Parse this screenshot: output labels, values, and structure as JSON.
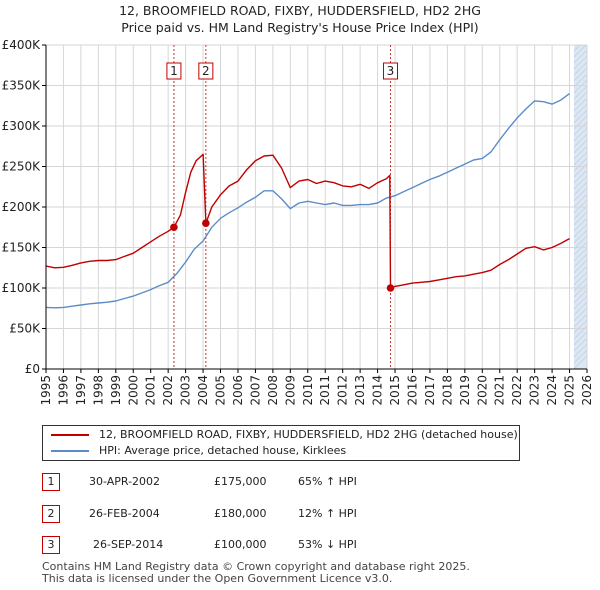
{
  "title_line1": "12, BROOMFIELD ROAD, FIXBY, HUDDERSFIELD, HD2 2HG",
  "title_line2": "Price paid vs. HM Land Registry's House Price Index (HPI)",
  "colors": {
    "price_line": "#c00000",
    "hpi_line": "#5b8cc8",
    "shade": "#dde6f3",
    "grid": "#d6d6d6",
    "axis": "#000000"
  },
  "chart_data": {
    "type": "line",
    "xlim": [
      1995,
      2026
    ],
    "ylim": [
      0,
      400000
    ],
    "grid": true,
    "x_ticks": [
      "1995",
      "1996",
      "1997",
      "1998",
      "1999",
      "2000",
      "2001",
      "2002",
      "2003",
      "2004",
      "2005",
      "2006",
      "2007",
      "2008",
      "2009",
      "2010",
      "2011",
      "2012",
      "2013",
      "2014",
      "2015",
      "2016",
      "2017",
      "2018",
      "2019",
      "2020",
      "2021",
      "2022",
      "2023",
      "2024",
      "2025",
      "2026"
    ],
    "y_ticks": [
      {
        "value": 0,
        "label": "£0"
      },
      {
        "value": 50000,
        "label": "£50K"
      },
      {
        "value": 100000,
        "label": "£100K"
      },
      {
        "value": 150000,
        "label": "£150K"
      },
      {
        "value": 200000,
        "label": "£200K"
      },
      {
        "value": 250000,
        "label": "£250K"
      },
      {
        "value": 300000,
        "label": "£300K"
      },
      {
        "value": 350000,
        "label": "£350K"
      },
      {
        "value": 400000,
        "label": "£400K"
      }
    ],
    "future_shade_from": 2025.25,
    "series": [
      {
        "name": "12, BROOMFIELD ROAD, FIXBY, HUDDERSFIELD, HD2 2HG (detached house)",
        "color": "#c00000",
        "x": [
          1995.0,
          1995.5,
          1996.0,
          1996.5,
          1997.0,
          1997.5,
          1998.0,
          1998.5,
          1999.0,
          1999.5,
          2000.0,
          2000.5,
          2001.0,
          2001.5,
          2002.0,
          2002.33,
          2002.7,
          2003.0,
          2003.3,
          2003.6,
          2003.9,
          2004.0,
          2004.16,
          2004.5,
          2005.0,
          2005.5,
          2006.0,
          2006.5,
          2007.0,
          2007.5,
          2008.0,
          2008.5,
          2009.0,
          2009.5,
          2010.0,
          2010.5,
          2011.0,
          2011.5,
          2012.0,
          2012.5,
          2013.0,
          2013.5,
          2014.0,
          2014.5,
          2014.7,
          2014.74,
          2015.0,
          2015.5,
          2016.0,
          2016.5,
          2017.0,
          2017.5,
          2018.0,
          2018.5,
          2019.0,
          2019.5,
          2020.0,
          2020.5,
          2021.0,
          2021.5,
          2022.0,
          2022.5,
          2023.0,
          2023.5,
          2024.0,
          2024.5,
          2025.0
        ],
        "y": [
          127000,
          125000,
          125500,
          128000,
          131000,
          133000,
          134000,
          134000,
          135000,
          139000,
          143000,
          150000,
          157000,
          164000,
          170000,
          175000,
          190000,
          218000,
          243000,
          257000,
          263000,
          265000,
          180000,
          200000,
          215000,
          226000,
          232000,
          246000,
          257000,
          263000,
          264000,
          248000,
          224000,
          232000,
          234000,
          229000,
          232000,
          230000,
          226000,
          225000,
          228000,
          223000,
          230000,
          235000,
          239000,
          100000,
          102000,
          104000,
          106000,
          107000,
          108000,
          110000,
          112000,
          114000,
          115000,
          117000,
          119000,
          122000,
          129000,
          135000,
          142000,
          149000,
          151000,
          147000,
          150000,
          155000,
          161000
        ]
      },
      {
        "name": "HPI: Average price, detached house, Kirklees",
        "color": "#5b8cc8",
        "x": [
          1995.0,
          1995.5,
          1996.0,
          1996.5,
          1997.0,
          1997.5,
          1998.0,
          1998.5,
          1999.0,
          1999.5,
          2000.0,
          2000.5,
          2001.0,
          2001.5,
          2002.0,
          2002.5,
          2003.0,
          2003.5,
          2004.0,
          2004.5,
          2005.0,
          2005.5,
          2006.0,
          2006.5,
          2007.0,
          2007.5,
          2008.0,
          2008.5,
          2009.0,
          2009.5,
          2010.0,
          2010.5,
          2011.0,
          2011.5,
          2012.0,
          2012.5,
          2013.0,
          2013.5,
          2014.0,
          2014.5,
          2015.0,
          2015.5,
          2016.0,
          2016.5,
          2017.0,
          2017.5,
          2018.0,
          2018.5,
          2019.0,
          2019.5,
          2020.0,
          2020.5,
          2021.0,
          2021.5,
          2022.0,
          2022.5,
          2023.0,
          2023.5,
          2024.0,
          2024.5,
          2025.0
        ],
        "y": [
          76000,
          75500,
          76000,
          77500,
          79000,
          80500,
          81500,
          82500,
          84000,
          87000,
          90000,
          94000,
          98000,
          103000,
          107000,
          118000,
          132000,
          148000,
          158000,
          175000,
          186000,
          193000,
          199000,
          206000,
          212000,
          220000,
          220000,
          210000,
          198000,
          205000,
          207000,
          205000,
          203000,
          205000,
          202000,
          202000,
          203000,
          203000,
          205000,
          211000,
          214000,
          219000,
          224000,
          229000,
          234000,
          238000,
          243000,
          248000,
          253000,
          258000,
          260000,
          268000,
          283000,
          297000,
          310000,
          321000,
          331000,
          330000,
          327000,
          332000,
          340000
        ]
      }
    ],
    "sales": [
      {
        "id": "1",
        "x": 2002.33,
        "price": 175000,
        "date": "30-APR-2002",
        "price_label": "£175,000",
        "hpi": "65% ↑ HPI"
      },
      {
        "id": "2",
        "x": 2004.16,
        "price": 180000,
        "date": "26-FEB-2004",
        "price_label": "£180,000",
        "hpi": "12% ↑ HPI"
      },
      {
        "id": "3",
        "x": 2014.74,
        "price": 100000,
        "date": "26-SEP-2014",
        "price_label": "£100,000",
        "hpi": "53% ↓ HPI"
      }
    ]
  },
  "legend": {
    "price": "12, BROOMFIELD ROAD, FIXBY, HUDDERSFIELD, HD2 2HG (detached house)",
    "hpi": "HPI: Average price, detached house, Kirklees"
  },
  "footer": {
    "line1": "Contains HM Land Registry data © Crown copyright and database right 2025.",
    "line2": "This data is licensed under the Open Government Licence v3.0."
  }
}
